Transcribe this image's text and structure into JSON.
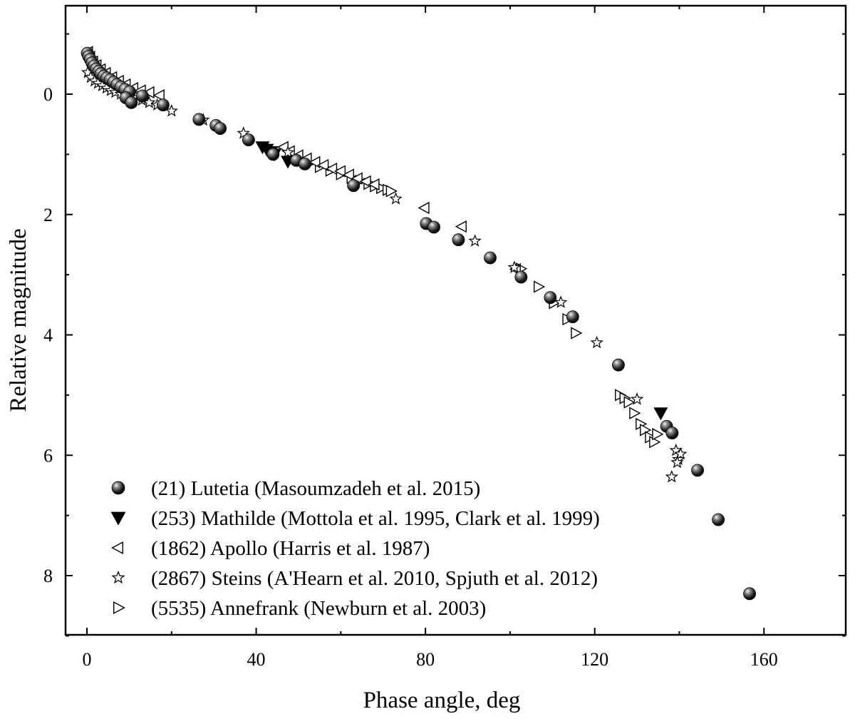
{
  "chart_data": {
    "type": "scatter",
    "title": "",
    "xlabel": "Phase angle, deg",
    "ylabel": "Relative magnitude",
    "xlim": [
      -5,
      180
    ],
    "ylim": [
      -1.5,
      9.3
    ],
    "y_inverted": true,
    "xticks": [
      0,
      40,
      80,
      120,
      160
    ],
    "yticks": [
      0,
      2,
      4,
      6,
      8
    ],
    "grid": false,
    "legend_position": "bottom-left",
    "series": [
      {
        "name": "(21) Lutetia (Masoumzadeh et al. 2015)",
        "marker": "sphere",
        "points": [
          [
            0.1,
            -0.68
          ],
          [
            0.4,
            -0.63
          ],
          [
            0.8,
            -0.58
          ],
          [
            1.2,
            -0.52
          ],
          [
            1.7,
            -0.47
          ],
          [
            2.2,
            -0.42
          ],
          [
            2.8,
            -0.38
          ],
          [
            3.3,
            -0.34
          ],
          [
            4.0,
            -0.3
          ],
          [
            4.7,
            -0.27
          ],
          [
            5.5,
            -0.24
          ],
          [
            6.3,
            -0.2
          ],
          [
            7.1,
            -0.16
          ],
          [
            8.0,
            -0.12
          ],
          [
            9.0,
            -0.08
          ],
          [
            10.1,
            -0.04
          ],
          [
            9.2,
            0.06
          ],
          [
            10.5,
            0.14
          ],
          [
            13.1,
            0.03
          ],
          [
            18.0,
            0.18
          ],
          [
            26.5,
            0.42
          ],
          [
            30.5,
            0.52
          ],
          [
            31.5,
            0.57
          ],
          [
            38.2,
            0.76
          ],
          [
            44.0,
            1.0
          ],
          [
            49.5,
            1.1
          ],
          [
            51.5,
            1.16
          ],
          [
            63.0,
            1.52
          ],
          [
            80.2,
            2.15
          ],
          [
            82.0,
            2.21
          ],
          [
            87.8,
            2.42
          ],
          [
            95.3,
            2.72
          ],
          [
            102.6,
            3.04
          ],
          [
            109.5,
            3.38
          ],
          [
            114.8,
            3.7
          ],
          [
            125.6,
            4.5
          ],
          [
            137.0,
            5.52
          ],
          [
            138.3,
            5.63
          ],
          [
            144.3,
            6.25
          ],
          [
            149.2,
            7.07
          ],
          [
            156.6,
            8.3
          ]
        ]
      },
      {
        "name": "(253) Mathilde (Mottola et al. 1995, Clark et al. 1999)",
        "marker": "triangle-down",
        "points": [
          [
            41.5,
            0.88
          ],
          [
            42.5,
            0.92
          ],
          [
            43.5,
            0.96
          ],
          [
            44.3,
            1.0
          ],
          [
            47.5,
            1.12
          ],
          [
            135.6,
            5.3
          ]
        ]
      },
      {
        "name": "(1862) Apollo (Harris et al. 1987)",
        "marker": "triangle-left",
        "points": [
          [
            0.3,
            -0.7
          ],
          [
            0.8,
            -0.62
          ],
          [
            1.5,
            -0.54
          ],
          [
            2.3,
            -0.48
          ],
          [
            3.3,
            -0.41
          ],
          [
            4.5,
            -0.35
          ],
          [
            6.0,
            -0.28
          ],
          [
            7.6,
            -0.22
          ],
          [
            9.2,
            -0.16
          ],
          [
            11.0,
            -0.1
          ],
          [
            12.8,
            -0.06
          ],
          [
            14.8,
            -0.03
          ],
          [
            17.2,
            0.02
          ],
          [
            46.5,
            0.88
          ],
          [
            48.0,
            0.95
          ],
          [
            50.0,
            1.02
          ],
          [
            52.0,
            1.07
          ],
          [
            54.0,
            1.13
          ],
          [
            56.0,
            1.18
          ],
          [
            58.0,
            1.24
          ],
          [
            60.0,
            1.28
          ],
          [
            62.0,
            1.34
          ],
          [
            64.0,
            1.4
          ],
          [
            66.0,
            1.45
          ],
          [
            68.0,
            1.5
          ],
          [
            79.8,
            1.89
          ],
          [
            88.6,
            2.2
          ],
          [
            101.4,
            2.91
          ]
        ]
      },
      {
        "name": "(2867) Steins (A'Hearn et al. 2010, Spjuth et al. 2012)",
        "marker": "star",
        "points": [
          [
            0.2,
            -0.36
          ],
          [
            0.9,
            -0.28
          ],
          [
            1.8,
            -0.22
          ],
          [
            2.6,
            -0.18
          ],
          [
            3.6,
            -0.14
          ],
          [
            4.6,
            -0.1
          ],
          [
            5.6,
            -0.06
          ],
          [
            6.7,
            -0.03
          ],
          [
            8.0,
            0.0
          ],
          [
            9.3,
            0.02
          ],
          [
            11.0,
            0.06
          ],
          [
            13.0,
            0.1
          ],
          [
            14.7,
            0.14
          ],
          [
            16.6,
            0.18
          ],
          [
            20.0,
            0.28
          ],
          [
            27.5,
            0.43
          ],
          [
            37.0,
            0.65
          ],
          [
            47.5,
            0.97
          ],
          [
            73.0,
            1.74
          ],
          [
            91.7,
            2.44
          ],
          [
            101.0,
            2.88
          ],
          [
            112.0,
            3.46
          ],
          [
            120.5,
            4.13
          ],
          [
            130.0,
            5.07
          ],
          [
            138.2,
            6.36
          ],
          [
            139.2,
            5.92
          ],
          [
            139.8,
            6.07
          ],
          [
            140.3,
            5.98
          ],
          [
            139.5,
            6.12
          ]
        ]
      },
      {
        "name": "(5535) Annefrank (Newburn et al. 2003)",
        "marker": "triangle-right",
        "points": [
          [
            50.0,
            1.1
          ],
          [
            52.5,
            1.15
          ],
          [
            55.0,
            1.21
          ],
          [
            57.5,
            1.27
          ],
          [
            60.0,
            1.33
          ],
          [
            62.5,
            1.39
          ],
          [
            64.5,
            1.44
          ],
          [
            66.5,
            1.49
          ],
          [
            68.0,
            1.53
          ],
          [
            69.5,
            1.56
          ],
          [
            71.0,
            1.59
          ],
          [
            71.8,
            1.61
          ],
          [
            102.5,
            2.9
          ],
          [
            106.7,
            3.2
          ],
          [
            110.3,
            3.47
          ],
          [
            113.5,
            3.74
          ],
          [
            115.5,
            3.97
          ],
          [
            125.9,
            5.0
          ],
          [
            127.0,
            5.05
          ],
          [
            128.0,
            5.12
          ],
          [
            129.3,
            5.3
          ],
          [
            130.8,
            5.48
          ],
          [
            131.8,
            5.58
          ],
          [
            133.0,
            5.7
          ],
          [
            134.0,
            5.78
          ],
          [
            134.7,
            5.65
          ]
        ]
      }
    ]
  }
}
